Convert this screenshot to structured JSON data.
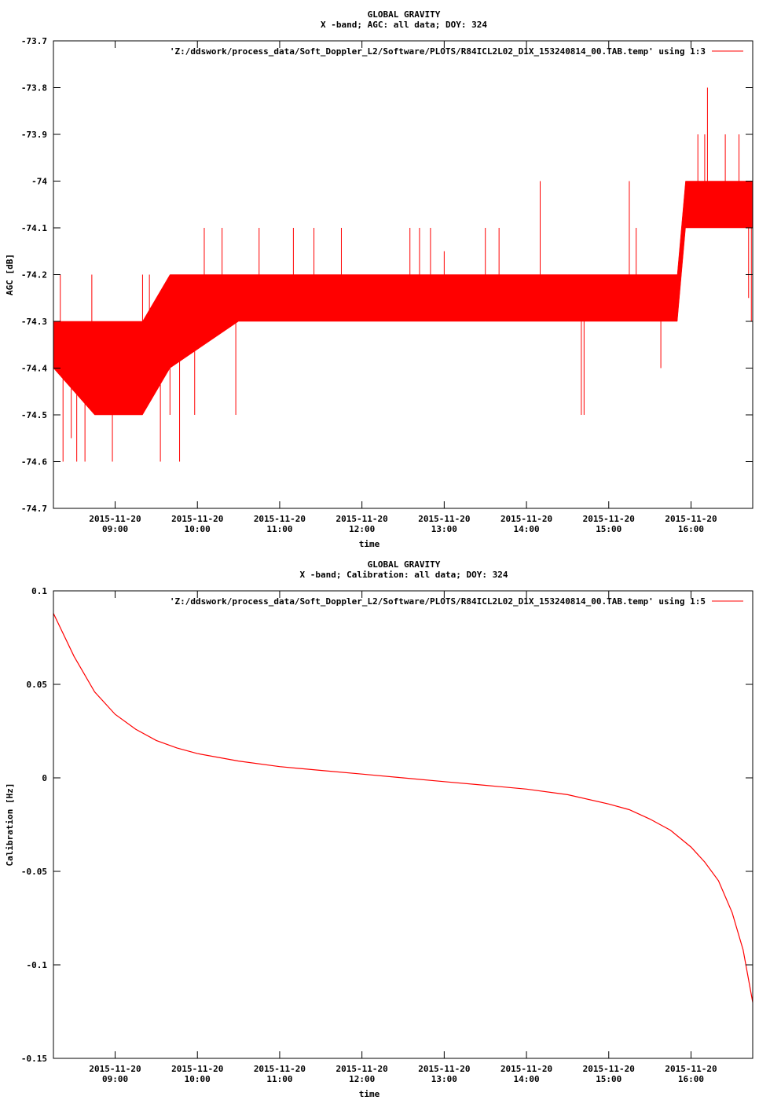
{
  "chart_data": [
    {
      "type": "line",
      "title": "GLOBAL GRAVITY",
      "subtitle": "X -band; AGC: all data; DOY: 324",
      "xlabel": "time",
      "ylabel": "AGC [dB]",
      "ylim": [
        -74.7,
        -73.7
      ],
      "yticks": [
        "-73.7",
        "-73.8",
        "-73.9",
        "-74",
        "-74.1",
        "-74.2",
        "-74.3",
        "-74.4",
        "-74.5",
        "-74.6",
        "-74.7"
      ],
      "xtick_dates": [
        "2015-11-20",
        "2015-11-20",
        "2015-11-20",
        "2015-11-20",
        "2015-11-20",
        "2015-11-20",
        "2015-11-20",
        "2015-11-20"
      ],
      "xtick_times": [
        "09:00",
        "10:00",
        "11:00",
        "12:00",
        "13:00",
        "14:00",
        "15:00",
        "16:00"
      ],
      "xlim": [
        "08:15",
        "16:45"
      ],
      "grid": false,
      "legend_position": "top-right",
      "series": [
        {
          "name": "'Z:/ddswork/process_data/Soft_Doppler_L2/Software/PLOTS/R84ICL2L02_D1X_153240814_00.TAB.temp' using 1:3",
          "color": "#ff0000",
          "envelope_x": [
            "08:15",
            "08:45",
            "09:20",
            "09:40",
            "10:30",
            "11:30",
            "12:30",
            "13:30",
            "14:30",
            "15:30",
            "15:50",
            "15:56",
            "16:45"
          ],
          "band_upper": [
            -74.3,
            -74.3,
            -74.3,
            -74.2,
            -74.2,
            -74.2,
            -74.2,
            -74.2,
            -74.2,
            -74.2,
            -74.2,
            -74.0,
            -74.0
          ],
          "band_lower": [
            -74.4,
            -74.5,
            -74.5,
            -74.4,
            -74.3,
            -74.3,
            -74.3,
            -74.3,
            -74.3,
            -74.3,
            -74.3,
            -74.1,
            -74.1
          ],
          "spikes": [
            [
              "08:20",
              -74.2
            ],
            [
              "08:22",
              -74.6
            ],
            [
              "08:28",
              -74.55
            ],
            [
              "08:32",
              -74.6
            ],
            [
              "08:38",
              -74.6
            ],
            [
              "08:43",
              -74.2
            ],
            [
              "08:58",
              -74.6
            ],
            [
              "09:20",
              -74.2
            ],
            [
              "09:25",
              -74.2
            ],
            [
              "09:33",
              -74.6
            ],
            [
              "09:40",
              -74.5
            ],
            [
              "09:47",
              -74.6
            ],
            [
              "09:58",
              -74.5
            ],
            [
              "10:05",
              -74.1
            ],
            [
              "10:18",
              -74.1
            ],
            [
              "10:28",
              -74.5
            ],
            [
              "10:45",
              -74.1
            ],
            [
              "11:10",
              -74.1
            ],
            [
              "11:25",
              -74.1
            ],
            [
              "11:45",
              -74.1
            ],
            [
              "12:35",
              -74.1
            ],
            [
              "12:42",
              -74.1
            ],
            [
              "12:50",
              -74.1
            ],
            [
              "13:00",
              -74.15
            ],
            [
              "13:30",
              -74.1
            ],
            [
              "13:40",
              -74.1
            ],
            [
              "14:05",
              -74.2
            ],
            [
              "14:10",
              -74.0
            ],
            [
              "14:40",
              -74.5
            ],
            [
              "14:42",
              -74.5
            ],
            [
              "15:15",
              -74.0
            ],
            [
              "15:20",
              -74.1
            ],
            [
              "15:38",
              -74.4
            ],
            [
              "16:05",
              -73.9
            ],
            [
              "16:10",
              -73.9
            ],
            [
              "16:12",
              -73.8
            ],
            [
              "16:25",
              -73.9
            ],
            [
              "16:35",
              -73.9
            ],
            [
              "16:42",
              -74.25
            ],
            [
              "16:44",
              -74.3
            ]
          ]
        }
      ]
    },
    {
      "type": "line",
      "title": "GLOBAL GRAVITY",
      "subtitle": "X -band; Calibration: all data; DOY: 324",
      "xlabel": "time",
      "ylabel": "Calibration [Hz]",
      "ylim": [
        -0.15,
        0.1
      ],
      "yticks": [
        "0.1",
        "0.05",
        "0",
        "-0.05",
        "-0.1",
        "-0.15"
      ],
      "xtick_dates": [
        "2015-11-20",
        "2015-11-20",
        "2015-11-20",
        "2015-11-20",
        "2015-11-20",
        "2015-11-20",
        "2015-11-20",
        "2015-11-20"
      ],
      "xtick_times": [
        "09:00",
        "10:00",
        "11:00",
        "12:00",
        "13:00",
        "14:00",
        "15:00",
        "16:00"
      ],
      "xlim": [
        "08:15",
        "16:45"
      ],
      "grid": false,
      "legend_position": "top-right",
      "series": [
        {
          "name": "'Z:/ddswork/process_data/Soft_Doppler_L2/Software/PLOTS/R84ICL2L02_D1X_153240814_00.TAB.temp' using 1:5",
          "color": "#ff0000",
          "x": [
            "08:15",
            "08:30",
            "08:45",
            "09:00",
            "09:15",
            "09:30",
            "09:45",
            "10:00",
            "10:30",
            "11:00",
            "11:30",
            "12:00",
            "12:30",
            "13:00",
            "13:30",
            "14:00",
            "14:30",
            "15:00",
            "15:15",
            "15:30",
            "15:45",
            "16:00",
            "16:10",
            "16:20",
            "16:30",
            "16:38",
            "16:45"
          ],
          "y": [
            0.088,
            0.065,
            0.046,
            0.034,
            0.026,
            0.02,
            0.016,
            0.013,
            0.009,
            0.006,
            0.004,
            0.002,
            0.0,
            -0.002,
            -0.004,
            -0.006,
            -0.009,
            -0.014,
            -0.017,
            -0.022,
            -0.028,
            -0.037,
            -0.045,
            -0.055,
            -0.072,
            -0.092,
            -0.12
          ]
        }
      ]
    }
  ]
}
